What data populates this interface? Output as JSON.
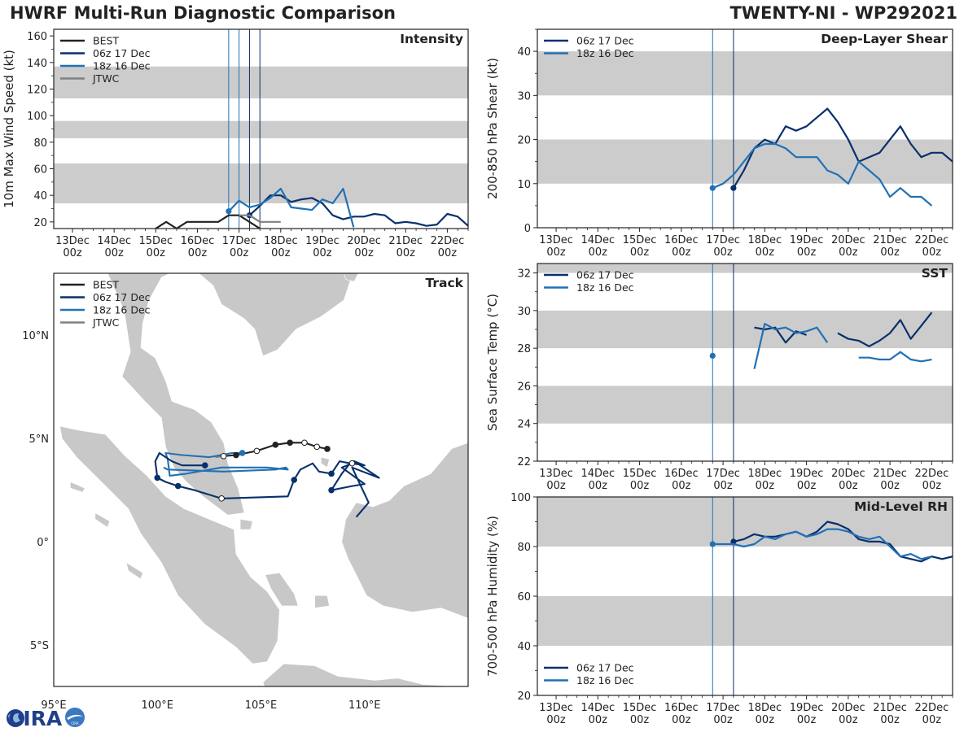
{
  "header": {
    "title_left": "HWRF Multi-Run Diagnostic Comparison",
    "title_right": "TWENTY-NI - WP292021"
  },
  "logo": {
    "name": "CIRA",
    "text": "CIRA"
  },
  "colors": {
    "best": "#222222",
    "run_06z": "#08306b",
    "run_18z": "#2171b5",
    "jtwc": "#808080",
    "band": "#cccccc",
    "land": "#c8c8c8"
  },
  "time_axis": {
    "tick_labels": [
      "13Dec\n00z",
      "14Dec\n00z",
      "15Dec\n00z",
      "16Dec\n00z",
      "17Dec\n00z",
      "18Dec\n00z",
      "19Dec\n00z",
      "20Dec\n00z",
      "21Dec\n00z",
      "22Dec\n00z"
    ],
    "xlim_days": [
      12.55,
      22.5
    ]
  },
  "chart_data": [
    {
      "id": "intensity",
      "type": "line",
      "title": "Intensity",
      "ylabel": "10m Max Wind Speed (kt)",
      "ylim": [
        15,
        165
      ],
      "yticks": [
        20,
        40,
        60,
        80,
        100,
        120,
        140,
        160
      ],
      "bands": [
        [
          34,
          64
        ],
        [
          83,
          96
        ],
        [
          113,
          137
        ]
      ],
      "vlines": [
        {
          "day": 16.75,
          "color": "#2171b5"
        },
        {
          "day": 17.0,
          "color": "#2171b5"
        },
        {
          "day": 17.25,
          "color": "#08306b"
        },
        {
          "day": 17.5,
          "color": "#08306b"
        }
      ],
      "legend": [
        "BEST",
        "06z 17 Dec",
        "18z 16 Dec",
        "JTWC"
      ],
      "series": [
        {
          "name": "BEST",
          "color": "#222222",
          "x": [
            15.0,
            15.25,
            15.5,
            15.75,
            16.0,
            16.25,
            16.5,
            16.75,
            17.0,
            17.25,
            17.5
          ],
          "y": [
            15,
            20,
            15,
            20,
            20,
            20,
            20,
            25,
            25,
            20,
            15
          ]
        },
        {
          "name": "06z 17 Dec",
          "color": "#08306b",
          "marker_first": true,
          "x": [
            17.25,
            17.5,
            17.75,
            18.0,
            18.25,
            18.5,
            18.75,
            19.0,
            19.25,
            19.5,
            19.75,
            20.0,
            20.25,
            20.5,
            20.75,
            21.0,
            21.25,
            21.5,
            21.75,
            22.0,
            22.25,
            22.5
          ],
          "y": [
            25,
            32,
            40,
            40,
            35,
            37,
            38,
            34,
            25,
            22,
            24,
            24,
            26,
            25,
            19,
            20,
            19,
            17,
            18,
            26,
            24,
            17
          ]
        },
        {
          "name": "18z 16 Dec",
          "color": "#2171b5",
          "marker_first": true,
          "x": [
            16.75,
            17.0,
            17.25,
            17.5,
            17.75,
            18.0,
            18.25,
            18.5,
            18.75,
            19.0,
            19.25,
            19.5,
            19.75
          ],
          "y": [
            28,
            36,
            31,
            33,
            38,
            45,
            31,
            30,
            29,
            37,
            34,
            45,
            16
          ]
        },
        {
          "name": "JTWC",
          "color": "#808080",
          "x": [
            17.0,
            17.25,
            17.5,
            17.75,
            18.0
          ],
          "y": [
            25,
            25,
            20,
            20,
            20
          ]
        }
      ]
    },
    {
      "id": "shear",
      "type": "line",
      "title": "Deep-Layer Shear",
      "ylabel": "200-850 hPa Shear (kt)",
      "ylim": [
        0,
        45
      ],
      "yticks": [
        0,
        10,
        20,
        30,
        40
      ],
      "bands": [
        [
          10,
          20
        ],
        [
          30,
          40
        ]
      ],
      "vlines": [
        {
          "day": 16.75,
          "color": "#2171b5"
        },
        {
          "day": 17.25,
          "color": "#08306b"
        }
      ],
      "legend": [
        "06z 17 Dec",
        "18z 16 Dec"
      ],
      "series": [
        {
          "name": "06z 17 Dec",
          "color": "#08306b",
          "marker_first": true,
          "x": [
            17.25,
            17.5,
            17.75,
            18.0,
            18.25,
            18.5,
            18.75,
            19.0,
            19.25,
            19.5,
            19.75,
            20.0,
            20.25,
            20.5,
            20.75,
            21.0,
            21.25,
            21.5,
            21.75,
            22.0,
            22.25,
            22.5
          ],
          "y": [
            9,
            13,
            18,
            20,
            19,
            23,
            22,
            23,
            25,
            27,
            24,
            20,
            15,
            16,
            17,
            20,
            23,
            19,
            16,
            17,
            17,
            15
          ]
        },
        {
          "name": "18z 16 Dec",
          "color": "#2171b5",
          "marker_first": true,
          "x": [
            16.75,
            17.0,
            17.25,
            17.5,
            17.75,
            18.0,
            18.25,
            18.5,
            18.75,
            19.0,
            19.25,
            19.5,
            19.75,
            20.0,
            20.25,
            20.5,
            20.75,
            21.0,
            21.25,
            21.5,
            21.75,
            22.0
          ],
          "y": [
            9,
            10,
            12,
            15,
            18,
            19,
            19,
            18,
            16,
            16,
            16,
            13,
            12,
            10,
            15,
            13,
            11,
            7,
            9,
            7,
            7,
            5
          ]
        }
      ]
    },
    {
      "id": "sst",
      "type": "line",
      "title": "SST",
      "ylabel": "Sea Surface Temp (°C)",
      "ylim": [
        22,
        32.5
      ],
      "yticks": [
        22,
        24,
        26,
        28,
        30,
        32
      ],
      "bands": [
        [
          24,
          26
        ],
        [
          28,
          30
        ],
        [
          32,
          32.5
        ]
      ],
      "vlines": [
        {
          "day": 16.75,
          "color": "#2171b5"
        },
        {
          "day": 17.25,
          "color": "#08306b"
        }
      ],
      "legend": [
        "06z 17 Dec",
        "18z 16 Dec"
      ],
      "series": [
        {
          "name": "06z 17 Dec",
          "color": "#08306b",
          "x": [
            17.75,
            18.0,
            18.25,
            18.5,
            18.75,
            19.0,
            null,
            19.75,
            20.0,
            20.25,
            20.5,
            20.75,
            21.0,
            21.25,
            21.5,
            21.75,
            22.0
          ],
          "y": [
            29.1,
            29.0,
            29.1,
            28.3,
            28.9,
            28.7,
            null,
            28.8,
            28.5,
            28.4,
            28.1,
            28.4,
            28.8,
            29.5,
            28.5,
            29.2,
            29.9
          ]
        },
        {
          "name": "18z 16 Dec",
          "color": "#2171b5",
          "marker_first": true,
          "x": [
            16.75,
            null,
            17.75,
            18.0,
            18.25,
            18.5,
            18.75,
            19.0,
            19.25,
            19.5,
            null,
            20.25,
            20.5,
            20.75,
            21.0,
            21.25,
            21.5,
            21.75,
            22.0
          ],
          "y": [
            27.6,
            null,
            26.9,
            29.3,
            29.0,
            29.1,
            28.8,
            28.9,
            29.1,
            28.3,
            null,
            27.5,
            27.5,
            27.4,
            27.4,
            27.8,
            27.4,
            27.3,
            27.4
          ]
        }
      ]
    },
    {
      "id": "rh",
      "type": "line",
      "title": "Mid-Level RH",
      "ylabel": "700-500 hPa Humidity (%)",
      "ylim": [
        20,
        100
      ],
      "yticks": [
        20,
        40,
        60,
        80,
        100
      ],
      "bands": [
        [
          40,
          60
        ],
        [
          80,
          100
        ]
      ],
      "vlines": [
        {
          "day": 16.75,
          "color": "#2171b5"
        },
        {
          "day": 17.25,
          "color": "#08306b"
        }
      ],
      "legend": [
        "06z 17 Dec",
        "18z 16 Dec"
      ],
      "legend_loc": "lower-left",
      "series": [
        {
          "name": "06z 17 Dec",
          "color": "#08306b",
          "marker_first": true,
          "x": [
            17.25,
            17.5,
            17.75,
            18.0,
            18.25,
            18.5,
            18.75,
            19.0,
            19.25,
            19.5,
            19.75,
            20.0,
            20.25,
            20.5,
            20.75,
            21.0,
            21.25,
            21.5,
            21.75,
            22.0,
            22.25,
            22.5
          ],
          "y": [
            82,
            83,
            85,
            84,
            84,
            85,
            86,
            84,
            86,
            90,
            89,
            87,
            83,
            82,
            82,
            81,
            76,
            75,
            74,
            76,
            75,
            76
          ]
        },
        {
          "name": "18z 16 Dec",
          "color": "#2171b5",
          "marker_first": true,
          "x": [
            16.75,
            17.0,
            17.25,
            17.5,
            17.75,
            18.0,
            18.25,
            18.5,
            18.75,
            19.0,
            19.25,
            19.5,
            19.75,
            20.0,
            20.25,
            20.5,
            20.75,
            21.0,
            21.25,
            21.5,
            21.75,
            22.0
          ],
          "y": [
            81,
            81,
            81,
            80,
            81,
            84,
            83,
            85,
            86,
            84,
            85,
            87,
            87,
            86,
            84,
            83,
            84,
            80,
            76,
            77,
            75,
            76
          ]
        }
      ]
    },
    {
      "id": "track",
      "type": "map",
      "title": "Track",
      "xlim": [
        95,
        115
      ],
      "ylim": [
        -7,
        13
      ],
      "xticks": [
        95,
        100,
        105,
        110
      ],
      "xtick_labels": [
        "95°E",
        "100°E",
        "105°E",
        "110°E"
      ],
      "yticks": [
        10,
        5,
        0,
        -5
      ],
      "ytick_labels": [
        "10°N",
        "5°N",
        "0°",
        "5°S"
      ],
      "legend": [
        "BEST",
        "06z 17 Dec",
        "18z 16 Dec",
        "JTWC"
      ],
      "series": [
        {
          "name": "BEST",
          "color": "#222222",
          "lon": [
            108.2,
            107.7,
            107.1,
            106.4,
            105.7,
            104.8,
            103.8,
            103.2
          ],
          "lat": [
            4.5,
            4.6,
            4.8,
            4.8,
            4.7,
            4.4,
            4.2,
            4.15
          ],
          "open": [
            false,
            true,
            true,
            false,
            false,
            true,
            false,
            true
          ]
        },
        {
          "name": "06z 17 Dec",
          "color": "#08306b",
          "lon": [
            102.3,
            101.2,
            100.7,
            100.1,
            99.9,
            100.0,
            100.4,
            101.0,
            101.8,
            103.1,
            106.3,
            106.6,
            106.9,
            107.5,
            107.8,
            108.4,
            108.8,
            109.3,
            108.9,
            108.4,
            109.4,
            110.0,
            108.9,
            109.4,
            110.0,
            109.5,
            110.7,
            109.4,
            110.2,
            109.6
          ],
          "lat": [
            3.7,
            3.7,
            3.9,
            4.3,
            3.9,
            3.1,
            2.9,
            2.7,
            2.5,
            2.1,
            2.2,
            3.0,
            3.5,
            3.8,
            3.4,
            3.3,
            3.9,
            3.8,
            3.3,
            2.5,
            2.7,
            2.8,
            3.6,
            3.8,
            3.7,
            3.9,
            3.1,
            3.6,
            1.9,
            1.2
          ],
          "points": [
            [
              102.3,
              3.7,
              false
            ],
            [
              100.0,
              3.1,
              false
            ],
            [
              101.0,
              2.7,
              false
            ],
            [
              103.1,
              2.1,
              true
            ],
            [
              106.6,
              3.0,
              false
            ],
            [
              108.4,
              3.3,
              false
            ],
            [
              108.4,
              2.5,
              false
            ],
            [
              109.4,
              3.8,
              true
            ]
          ]
        },
        {
          "name": "18z 16 Dec",
          "color": "#2171b5",
          "lon": [
            104.1,
            103.6,
            102.5,
            101.2,
            100.4,
            100.5,
            100.6,
            101.4,
            103.1,
            105.3,
            106.3,
            106.2,
            105.7,
            103.2,
            100.5,
            100.3
          ],
          "lat": [
            4.3,
            4.3,
            4.1,
            4.2,
            4.3,
            4.0,
            3.2,
            3.3,
            3.6,
            3.6,
            3.5,
            3.6,
            3.5,
            3.4,
            3.5,
            3.6
          ],
          "points": [
            [
              104.1,
              4.3,
              false
            ]
          ]
        },
        {
          "name": "JTWC",
          "color": "#808080",
          "lon": [
            102.8,
            103.2
          ],
          "lat": [
            4.1,
            4.15
          ]
        }
      ]
    }
  ]
}
